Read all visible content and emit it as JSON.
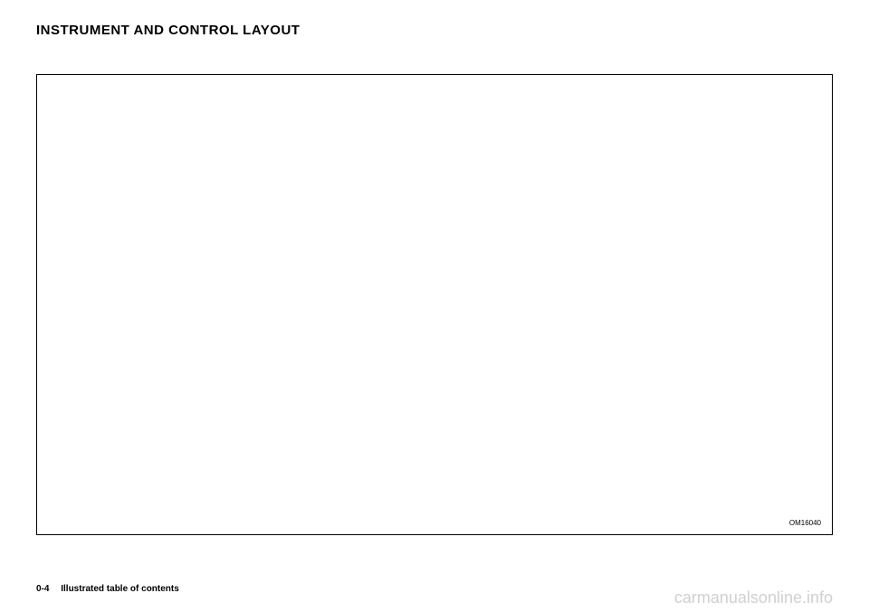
{
  "header": {
    "title": "INSTRUMENT AND CONTROL LAYOUT"
  },
  "illustration": {
    "label": "OM16040"
  },
  "footer": {
    "page_number": "0-4",
    "section_title": "Illustrated table of contents"
  },
  "watermark": {
    "text": "carmanualsonline.info"
  }
}
